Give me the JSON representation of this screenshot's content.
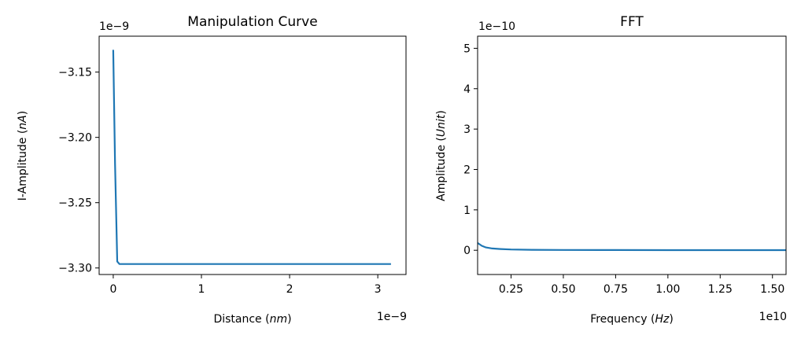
{
  "chart_data": [
    {
      "type": "line",
      "title": "Manipulation Curve",
      "xlabel": "Distance (nm)",
      "xlabel_parts": [
        "Distance (",
        "nm",
        ")"
      ],
      "ylabel": "I-Amplitude (nA)",
      "ylabel_parts": [
        "I-Amplitude (",
        "nA",
        ")"
      ],
      "x_offset_label": "1e−9",
      "y_offset_label": "1e−9",
      "xlim": [
        -0.16,
        3.32
      ],
      "ylim": [
        -3.305,
        -3.1225
      ],
      "xticks": [
        0,
        1,
        2,
        3
      ],
      "xtick_labels": [
        "0",
        "1",
        "2",
        "3"
      ],
      "yticks": [
        -3.15,
        -3.2,
        -3.25,
        -3.3
      ],
      "ytick_labels": [
        "−3.15",
        "−3.20",
        "−3.25",
        "−3.30"
      ],
      "series": [
        {
          "x": [
            0,
            0.02,
            0.045,
            0.07,
            0.1,
            0.5,
            1.0,
            2.0,
            3.15
          ],
          "y": [
            -3.133,
            -3.22,
            -3.295,
            -3.297,
            -3.297,
            -3.297,
            -3.297,
            -3.297,
            -3.297
          ]
        }
      ],
      "grid": false,
      "line_color": "#1f77b4"
    },
    {
      "type": "line",
      "title": "FFT",
      "xlabel": "Frequency (Hz)",
      "xlabel_parts": [
        "Frequency (",
        "Hz",
        ")"
      ],
      "ylabel": "Amplitude (Unit)",
      "ylabel_parts": [
        "Amplitude (",
        "Unit",
        ")"
      ],
      "x_offset_label": "1e10",
      "y_offset_label": "1e−10",
      "xlim": [
        0.09,
        1.565
      ],
      "ylim": [
        -0.6,
        5.3
      ],
      "xticks": [
        0.25,
        0.5,
        0.75,
        1.0,
        1.25,
        1.5
      ],
      "xtick_labels": [
        "0.25",
        "0.50",
        "0.75",
        "1.00",
        "1.25",
        "1.50"
      ],
      "yticks": [
        0,
        1,
        2,
        3,
        4,
        5
      ],
      "ytick_labels": [
        "0",
        "1",
        "2",
        "3",
        "4",
        "5"
      ],
      "series": [
        {
          "x": [
            0.09,
            0.11,
            0.13,
            0.16,
            0.2,
            0.25,
            0.35,
            0.5,
            0.75,
            1.0,
            1.25,
            1.565
          ],
          "y": [
            0.18,
            0.11,
            0.07,
            0.045,
            0.03,
            0.02,
            0.012,
            0.008,
            0.005,
            0.004,
            0.003,
            0.003
          ]
        }
      ],
      "grid": false,
      "line_color": "#1f77b4"
    }
  ]
}
